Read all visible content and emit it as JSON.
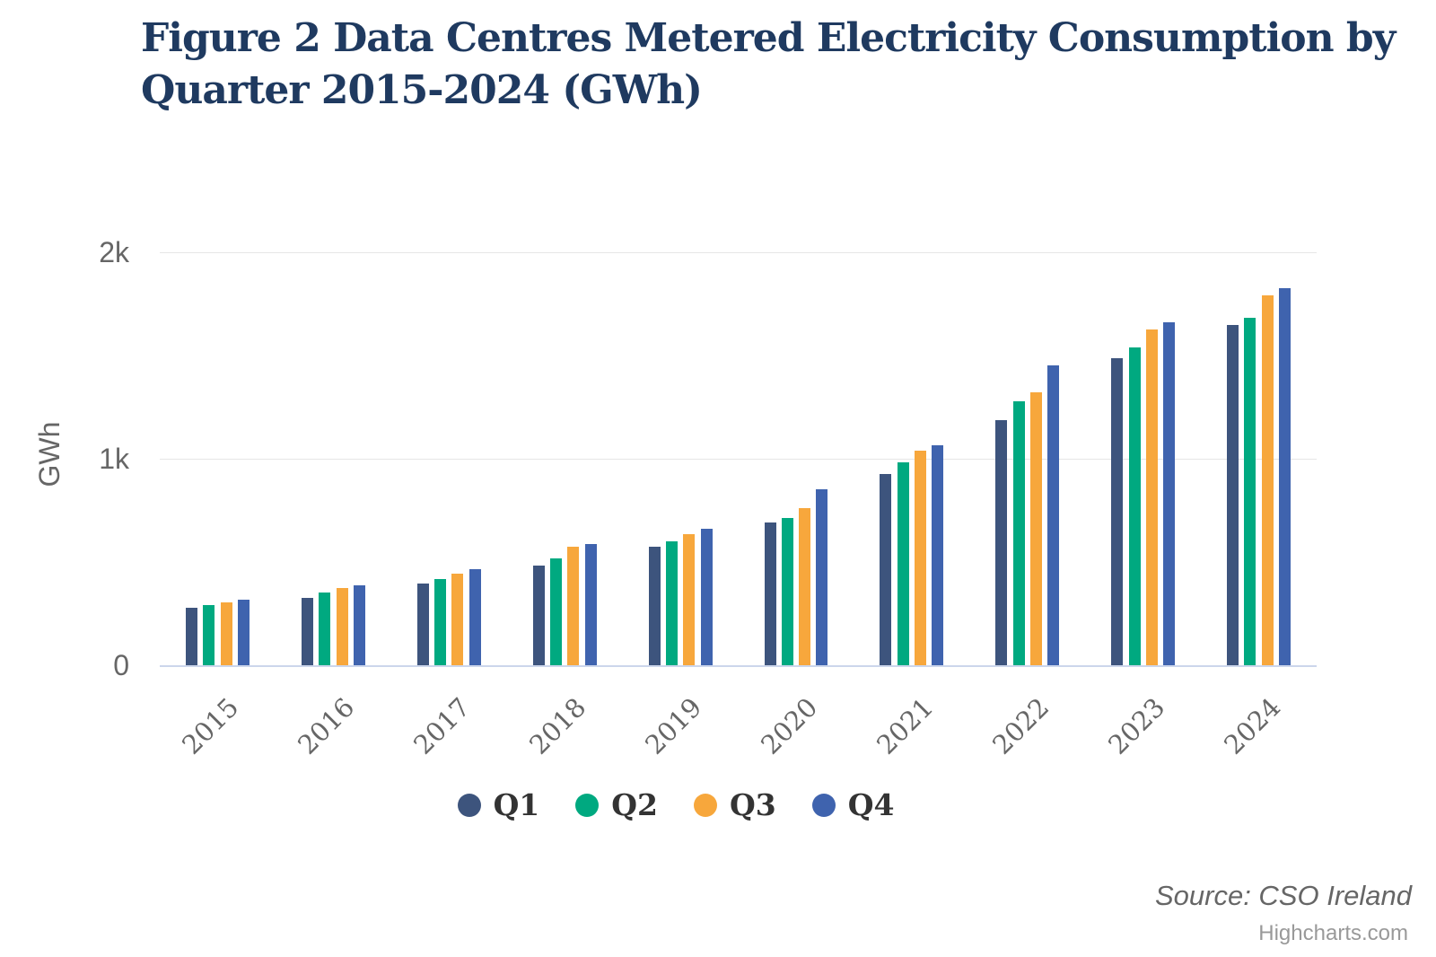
{
  "title": {
    "text": "Figure 2 Data Centres Metered Electricity Consumption by Quarter 2015-2024 (GWh)",
    "lines": [
      "Figure 2 Data Centres Metered Electricity Consumption by",
      "Quarter 2015-2024 (GWh)"
    ]
  },
  "credits": {
    "source": "Source: CSO Ireland",
    "highcharts": "Highcharts.com"
  },
  "colors": {
    "title": "#1f3a60",
    "axis_label": "#666666",
    "legend_label": "#333333",
    "gridline": "#e6e6e6",
    "axis_line": "#ccd6eb",
    "q1": "#3d547d",
    "q2": "#00a980",
    "q3": "#f7a73c",
    "q4": "#3f63ae"
  },
  "chart_data": {
    "type": "bar",
    "title": "Figure 2 Data Centres Metered Electricity Consumption by Quarter 2015-2024 (GWh)",
    "ylabel": "GWh",
    "xlabel": "",
    "ylim": [
      0,
      2000
    ],
    "ytick_values": [
      0,
      1000,
      2000
    ],
    "ytick_labels": [
      "0",
      "1k",
      "2k"
    ],
    "grid": true,
    "legend_position": "bottom",
    "categories": [
      "2015",
      "2016",
      "2017",
      "2018",
      "2019",
      "2020",
      "2021",
      "2022",
      "2023",
      "2024"
    ],
    "series": [
      {
        "name": "Q1",
        "color": "#3d547d",
        "values": [
          280,
          326,
          396,
          481,
          573,
          690,
          925,
          1185,
          1485,
          1648
        ]
      },
      {
        "name": "Q2",
        "color": "#00a980",
        "values": [
          291,
          352,
          418,
          519,
          599,
          713,
          982,
          1279,
          1540,
          1683
        ]
      },
      {
        "name": "Q3",
        "color": "#f7a73c",
        "values": [
          304,
          374,
          443,
          573,
          634,
          760,
          1039,
          1320,
          1625,
          1790
        ]
      },
      {
        "name": "Q4",
        "color": "#3f63ae",
        "values": [
          317,
          388,
          466,
          585,
          663,
          851,
          1064,
          1450,
          1660,
          1825
        ]
      }
    ]
  }
}
